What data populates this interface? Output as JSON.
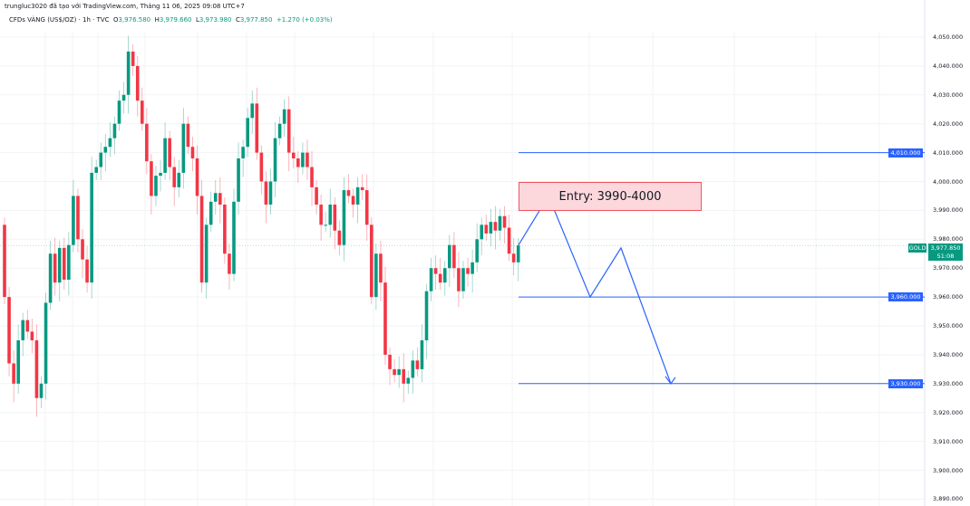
{
  "header": {
    "attribution": "trungluc3020 đã tạo với TradingView.com, Tháng 11 06, 2025 09:08 UTC+7",
    "symbol": "CFDs VÀNG (US$/OZ) · 1h · TVC",
    "o_label": "O",
    "o": "3,976.580",
    "h_label": "H",
    "h": "3,979.660",
    "l_label": "L",
    "l": "3,973.980",
    "c_label": "C",
    "c": "3,977.850",
    "change": "+1.270 (+0.03%)"
  },
  "price_axis": {
    "labels": [
      "4,050.000",
      "4,040.000",
      "4,030.000",
      "4,020.000",
      "4,010.000",
      "4,000.000",
      "3,990.000",
      "3,980.000",
      "3,970.000",
      "3,960.000",
      "3,950.000",
      "3,940.000",
      "3,930.000",
      "3,920.000",
      "3,910.000",
      "3,900.000",
      "3,890.000"
    ],
    "symbol_tag": "GOLD",
    "current_price": "3,977.850",
    "countdown": "51:08"
  },
  "levels": [
    {
      "price": 4010,
      "label": "4,010.000"
    },
    {
      "price": 3960,
      "label": "3,960.000"
    },
    {
      "price": 3930,
      "label": "3,930.000"
    }
  ],
  "entry_box": {
    "label": "Entry: 3990-4000",
    "from": 3990,
    "to": 4000
  },
  "projection_path": [
    3978,
    3995,
    3960,
    3977,
    3930
  ],
  "colors": {
    "up": "#089981",
    "down": "#f23645",
    "level": "#2962ff",
    "entry_fill": "#fcd8dc",
    "entry_border": "#f0525f"
  },
  "chart_data": {
    "type": "candlestick",
    "ylim": [
      3890,
      4050
    ],
    "first_open": 3985,
    "closes": [
      3960,
      3937,
      3930,
      3945,
      3952,
      3948,
      3945,
      3925,
      3930,
      3958,
      3975,
      3965,
      3977,
      3966,
      3978,
      3995,
      3980,
      3973,
      3965,
      4003,
      4005,
      4010,
      4012,
      4015,
      4020,
      4028,
      4030,
      4045,
      4040,
      4028,
      4020,
      4007,
      3995,
      4002,
      4003,
      4015,
      4005,
      3998,
      4003,
      4020,
      4012,
      4008,
      3995,
      3965,
      3985,
      3993,
      3996,
      3992,
      3975,
      3968,
      3993,
      4008,
      4012,
      4022,
      4027,
      4010,
      4000,
      3992,
      4000,
      4015,
      4020,
      4025,
      4010,
      4008,
      4005,
      4010,
      4005,
      3998,
      3992,
      3985,
      3985,
      3992,
      3983,
      3978,
      3997,
      3995,
      3992,
      3998,
      3997,
      3985,
      3960,
      3975,
      3965,
      3940,
      3935,
      3933,
      3935,
      3930,
      3932,
      3938,
      3935,
      3945,
      3962,
      3970,
      3968,
      3965,
      3970,
      3978,
      3970,
      3962,
      3970,
      3968,
      3972,
      3980,
      3985,
      3982,
      3986,
      3983,
      3988,
      3984,
      3975,
      3972,
      3977.85
    ]
  }
}
